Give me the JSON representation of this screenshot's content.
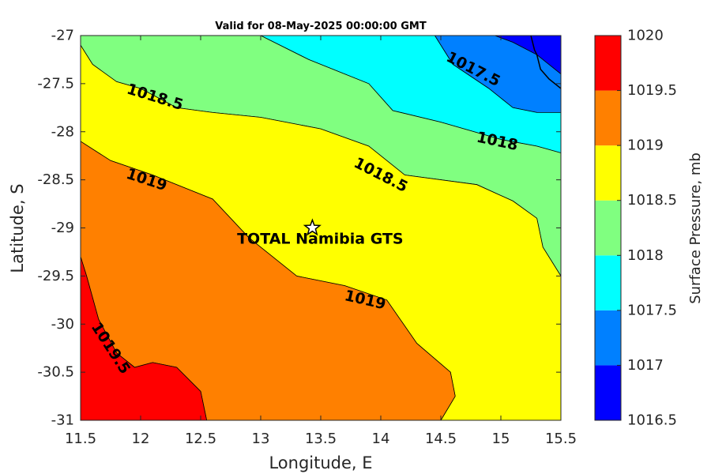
{
  "chart_data": {
    "type": "filled-contour",
    "title": "Valid for 08-May-2025 00:00:00 GMT",
    "xlabel": "Longitude, E",
    "ylabel": "Latitude, S",
    "xlim": [
      11.5,
      15.5
    ],
    "ylim": [
      -31,
      -27
    ],
    "x_ticks": [
      "11.5",
      "12",
      "12.5",
      "13",
      "13.5",
      "14",
      "14.5",
      "15",
      "15.5"
    ],
    "y_ticks": [
      "-27",
      "-27.5",
      "-28",
      "-28.5",
      "-29",
      "-29.5",
      "-30",
      "-30.5",
      "-31"
    ],
    "colorbar": {
      "label": "Surface Pressure, mb",
      "levels": [
        "1016.5",
        "1017",
        "1017.5",
        "1018",
        "1018.5",
        "1019",
        "1019.5",
        "1020"
      ],
      "colors": [
        "#0000ff",
        "#0080ff",
        "#00ffff",
        "#80ff80",
        "#ffff00",
        "#ff8000",
        "#ff0000",
        "#800000"
      ]
    },
    "contour_labels": [
      "1017.5",
      "1018",
      "1018.5",
      "1018.5",
      "1019",
      "1019",
      "1019.5"
    ],
    "site": {
      "name": "TOTAL Namibia GTS",
      "lon": 13.43,
      "lat": -29.0
    },
    "regions": [
      {
        "level": "1016.5-1017",
        "color": "#0000ff",
        "poly": [
          [
            14.95,
            -27.0
          ],
          [
            15.5,
            -27.0
          ],
          [
            15.5,
            -27.4
          ],
          [
            15.3,
            -27.2
          ],
          [
            15.1,
            -27.07
          ]
        ]
      },
      {
        "level": "1017-1017.5",
        "color": "#0080ff",
        "poly": [
          [
            14.45,
            -27.0
          ],
          [
            14.95,
            -27.0
          ],
          [
            15.1,
            -27.07
          ],
          [
            15.3,
            -27.2
          ],
          [
            15.5,
            -27.4
          ],
          [
            15.5,
            -27.8
          ],
          [
            15.3,
            -27.8
          ],
          [
            15.1,
            -27.75
          ],
          [
            14.9,
            -27.55
          ],
          [
            14.6,
            -27.3
          ]
        ]
      },
      {
        "level": "1017.5-1018",
        "color": "#00ffff",
        "poly": [
          [
            13.0,
            -27.0
          ],
          [
            14.45,
            -27.0
          ],
          [
            14.6,
            -27.3
          ],
          [
            14.9,
            -27.55
          ],
          [
            15.1,
            -27.75
          ],
          [
            15.3,
            -27.8
          ],
          [
            15.5,
            -27.8
          ],
          [
            15.5,
            -28.22
          ],
          [
            15.3,
            -28.15
          ],
          [
            15.0,
            -28.08
          ],
          [
            14.5,
            -27.9
          ],
          [
            14.1,
            -27.78
          ],
          [
            13.9,
            -27.5
          ],
          [
            13.4,
            -27.25
          ]
        ]
      },
      {
        "level": "1018-1018.5",
        "color": "#80ff80",
        "poly": [
          [
            11.5,
            -27.0
          ],
          [
            13.0,
            -27.0
          ],
          [
            13.4,
            -27.25
          ],
          [
            13.9,
            -27.5
          ],
          [
            14.1,
            -27.78
          ],
          [
            14.5,
            -27.9
          ],
          [
            15.0,
            -28.08
          ],
          [
            15.3,
            -28.15
          ],
          [
            15.5,
            -28.22
          ],
          [
            15.5,
            -29.5
          ],
          [
            15.35,
            -29.2
          ],
          [
            15.3,
            -28.9
          ],
          [
            15.1,
            -28.72
          ],
          [
            14.8,
            -28.55
          ],
          [
            14.2,
            -28.45
          ],
          [
            13.9,
            -28.15
          ],
          [
            13.5,
            -27.97
          ],
          [
            13.0,
            -27.85
          ],
          [
            12.6,
            -27.8
          ],
          [
            12.3,
            -27.75
          ],
          [
            12.0,
            -27.55
          ],
          [
            11.8,
            -27.48
          ],
          [
            11.6,
            -27.3
          ],
          [
            11.5,
            -27.1
          ]
        ]
      },
      {
        "level": "1018.5-1019",
        "color": "#ffff00",
        "poly": [
          [
            11.5,
            -27.1
          ],
          [
            11.6,
            -27.3
          ],
          [
            11.8,
            -27.48
          ],
          [
            12.0,
            -27.55
          ],
          [
            12.3,
            -27.75
          ],
          [
            12.6,
            -27.8
          ],
          [
            13.0,
            -27.85
          ],
          [
            13.5,
            -27.97
          ],
          [
            13.9,
            -28.15
          ],
          [
            14.2,
            -28.45
          ],
          [
            14.8,
            -28.55
          ],
          [
            15.1,
            -28.72
          ],
          [
            15.3,
            -28.9
          ],
          [
            15.35,
            -29.2
          ],
          [
            15.5,
            -29.5
          ],
          [
            15.5,
            -31.0
          ],
          [
            14.5,
            -31.0
          ],
          [
            14.62,
            -30.75
          ],
          [
            14.58,
            -30.5
          ],
          [
            14.3,
            -30.2
          ],
          [
            14.05,
            -29.75
          ],
          [
            13.7,
            -29.6
          ],
          [
            13.3,
            -29.5
          ],
          [
            12.9,
            -29.1
          ],
          [
            12.6,
            -28.7
          ],
          [
            12.1,
            -28.45
          ],
          [
            11.75,
            -28.3
          ],
          [
            11.5,
            -28.1
          ]
        ]
      },
      {
        "level": "1019-1019.5",
        "color": "#ff8000",
        "poly": [
          [
            11.5,
            -28.1
          ],
          [
            11.75,
            -28.3
          ],
          [
            12.1,
            -28.45
          ],
          [
            12.6,
            -28.7
          ],
          [
            12.9,
            -29.1
          ],
          [
            13.3,
            -29.5
          ],
          [
            13.7,
            -29.6
          ],
          [
            14.05,
            -29.75
          ],
          [
            14.3,
            -30.2
          ],
          [
            14.58,
            -30.5
          ],
          [
            14.62,
            -30.75
          ],
          [
            14.5,
            -31.0
          ],
          [
            12.55,
            -31.0
          ],
          [
            12.5,
            -30.7
          ],
          [
            12.3,
            -30.45
          ],
          [
            12.1,
            -30.4
          ],
          [
            11.95,
            -30.45
          ],
          [
            11.8,
            -30.3
          ],
          [
            11.65,
            -29.95
          ],
          [
            11.55,
            -29.5
          ],
          [
            11.5,
            -29.3
          ]
        ]
      },
      {
        "level": "1019.5-1020",
        "color": "#ff0000",
        "poly": [
          [
            11.5,
            -29.3
          ],
          [
            11.55,
            -29.5
          ],
          [
            11.65,
            -29.95
          ],
          [
            11.8,
            -30.3
          ],
          [
            11.95,
            -30.45
          ],
          [
            12.1,
            -30.4
          ],
          [
            12.3,
            -30.45
          ],
          [
            12.5,
            -30.7
          ],
          [
            12.55,
            -31.0
          ],
          [
            11.5,
            -31.0
          ]
        ]
      }
    ],
    "coastline": [
      [
        15.25,
        -27.0
      ],
      [
        15.28,
        -27.15
      ],
      [
        15.3,
        -27.2
      ],
      [
        15.33,
        -27.35
      ],
      [
        15.4,
        -27.45
      ],
      [
        15.5,
        -27.55
      ]
    ],
    "label_positions": [
      {
        "text": "1017.5",
        "lon": 14.77,
        "lat": -27.35,
        "angle": 27
      },
      {
        "text": "1018",
        "lon": 14.97,
        "lat": -28.1,
        "angle": 12
      },
      {
        "text": "1018.5",
        "lon": 12.12,
        "lat": -27.64,
        "angle": 17
      },
      {
        "text": "1018.5",
        "lon": 14.0,
        "lat": -28.45,
        "angle": 27
      },
      {
        "text": "1019",
        "lon": 12.05,
        "lat": -28.5,
        "angle": 18
      },
      {
        "text": "1019",
        "lon": 13.87,
        "lat": -29.75,
        "angle": 13
      },
      {
        "text": "1019.5",
        "lon": 11.75,
        "lat": -30.25,
        "angle": 57
      }
    ]
  }
}
